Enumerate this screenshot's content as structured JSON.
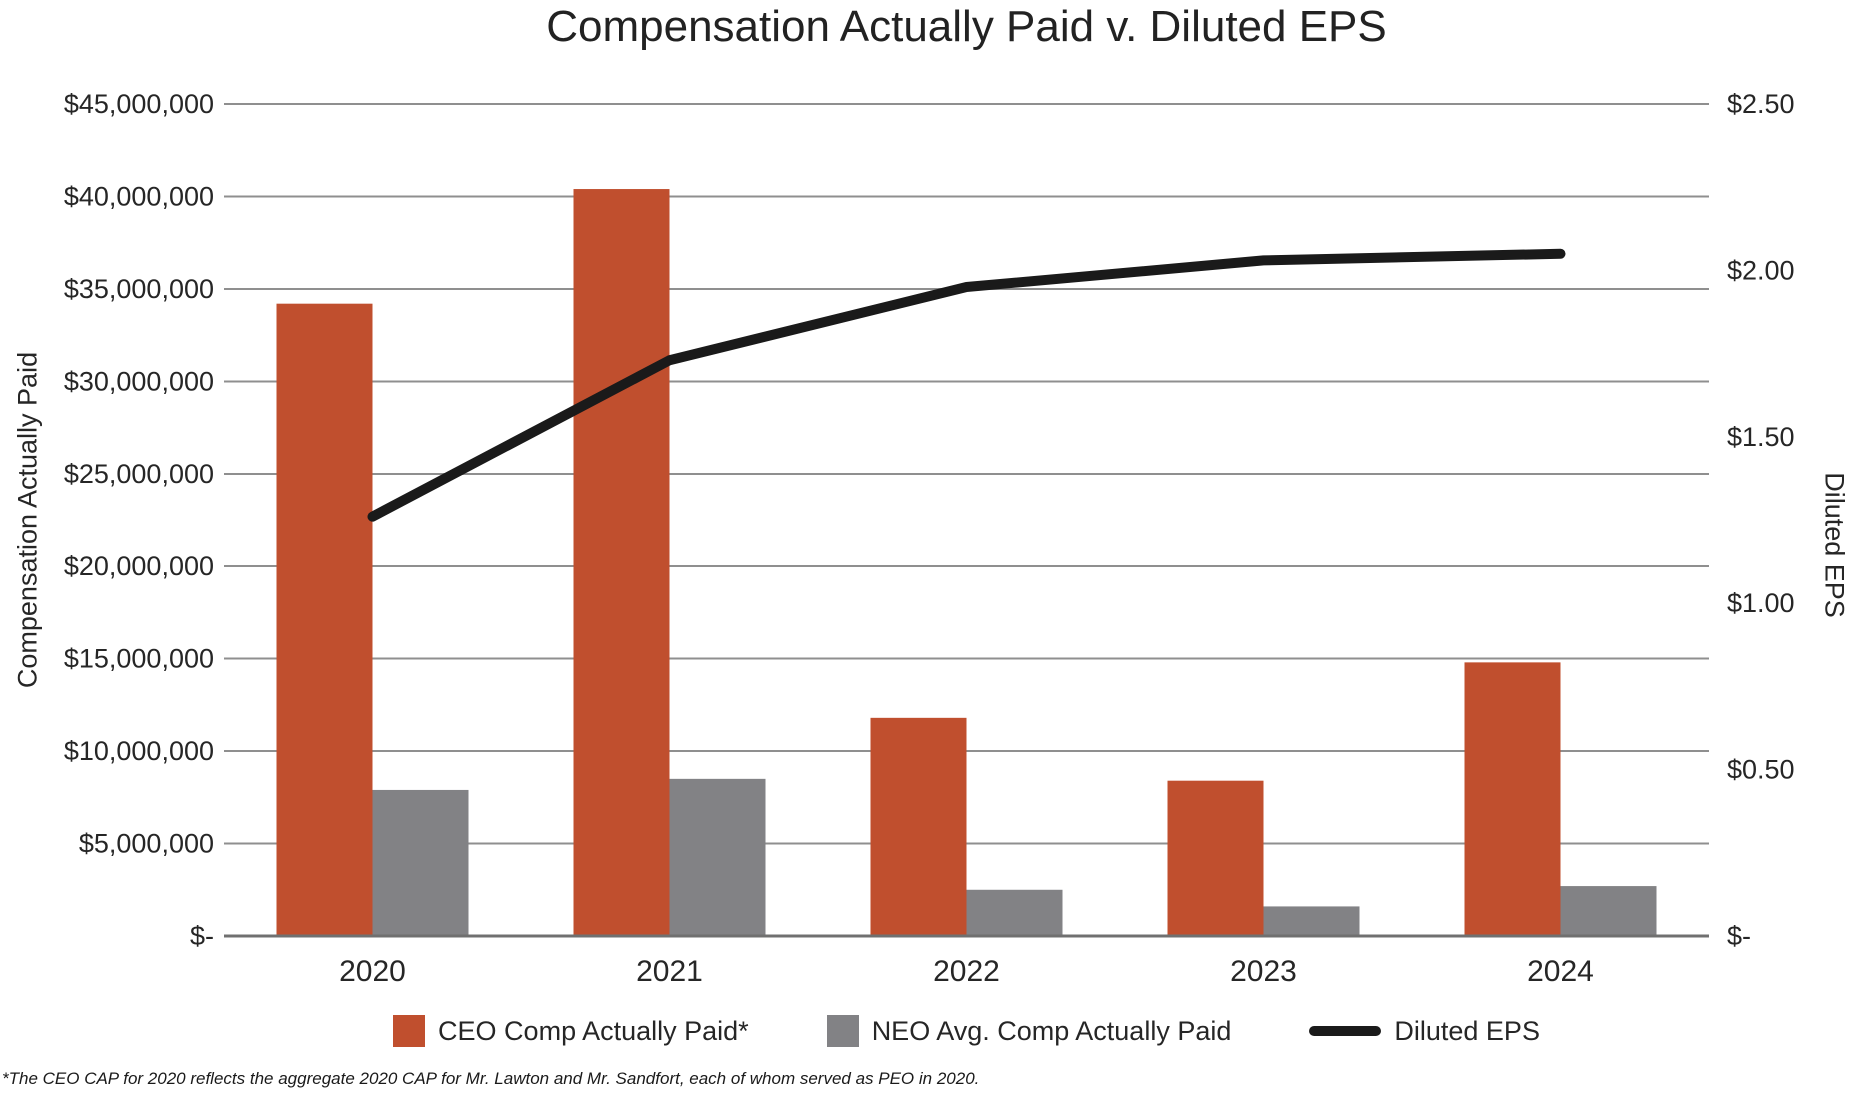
{
  "title": "Compensation Actually Paid v. Diluted EPS",
  "footnote": "*The CEO CAP for 2020 reflects the aggregate 2020 CAP for Mr. Lawton and Mr. Sandfort, each of whom served as PEO in 2020.",
  "colors": {
    "ceo_bar": "#C04F2E",
    "neo_bar": "#828285",
    "eps_line": "#1A1A1A",
    "gridline": "#8F8F8F",
    "baseline": "#707070",
    "text": "#262626"
  },
  "chart_data": {
    "type": "bar",
    "subtype": "grouped-bars-with-line",
    "title": "Compensation Actually Paid v. Diluted EPS",
    "categories": [
      "2020",
      "2021",
      "2022",
      "2023",
      "2024"
    ],
    "series": [
      {
        "name": "CEO Comp Actually Paid*",
        "type": "bar",
        "axis": "left",
        "color": "#C04F2E",
        "values": [
          34200000,
          40400000,
          11800000,
          8400000,
          14800000
        ]
      },
      {
        "name": "NEO Avg. Comp Actually Paid",
        "type": "bar",
        "axis": "left",
        "color": "#828285",
        "values": [
          7900000,
          8500000,
          2500000,
          1600000,
          2700000
        ]
      },
      {
        "name": "Diluted EPS",
        "type": "line",
        "axis": "right",
        "color": "#1A1A1A",
        "values": [
          1.26,
          1.73,
          1.95,
          2.03,
          2.05
        ]
      }
    ],
    "left_axis": {
      "label": "Compensation Actually Paid",
      "min": 0,
      "max": 45000000,
      "step": 5000000,
      "tick_labels": [
        "$-",
        "$5,000,000",
        "$10,000,000",
        "$15,000,000",
        "$20,000,000",
        "$25,000,000",
        "$30,000,000",
        "$35,000,000",
        "$40,000,000",
        "$45,000,000"
      ]
    },
    "right_axis": {
      "label": "Diluted EPS",
      "min": 0,
      "max": 2.5,
      "step": 0.5,
      "tick_labels": [
        "$-",
        "$0.50",
        "$1.00",
        "$1.50",
        "$2.00",
        "$2.50"
      ]
    },
    "grid": true,
    "legend_position": "bottom"
  }
}
